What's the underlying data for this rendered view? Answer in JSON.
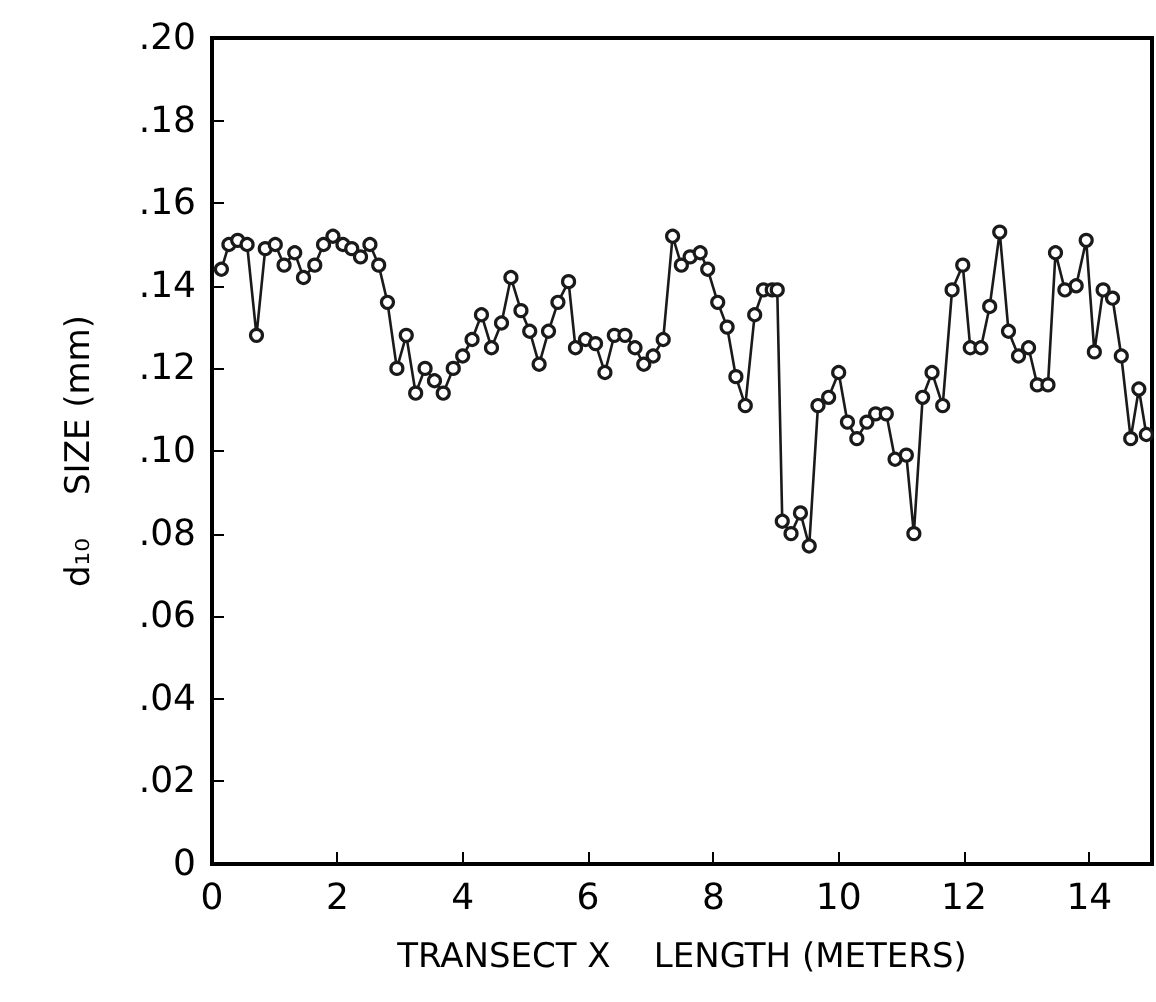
{
  "chart_data": {
    "type": "line",
    "xlabel": "TRANSECT X    LENGTH (METERS)",
    "ylabel": "d₁₀    SIZE (mm)",
    "xlim": [
      0,
      15
    ],
    "xticks": [
      0,
      2,
      4,
      6,
      8,
      10,
      12,
      14
    ],
    "ylim": [
      0,
      0.2
    ],
    "yticks": [
      {
        "value": 0,
        "label": "0"
      },
      {
        "value": 0.02,
        "label": ".02"
      },
      {
        "value": 0.04,
        "label": ".04"
      },
      {
        "value": 0.06,
        "label": ".06"
      },
      {
        "value": 0.08,
        "label": ".08"
      },
      {
        "value": 0.1,
        "label": ".10"
      },
      {
        "value": 0.12,
        "label": ".12"
      },
      {
        "value": 0.14,
        "label": ".14"
      },
      {
        "value": 0.16,
        "label": ".16"
      },
      {
        "value": 0.18,
        "label": ".18"
      },
      {
        "value": 0.2,
        "label": ".20"
      }
    ],
    "grid": false,
    "marker": "circle",
    "line_style": "solid",
    "series": [
      {
        "color": "#1a1a1a",
        "x": [
          0.15,
          0.27,
          0.41,
          0.56,
          0.71,
          0.85,
          1.01,
          1.15,
          1.32,
          1.46,
          1.64,
          1.78,
          1.93,
          2.09,
          2.23,
          2.37,
          2.52,
          2.66,
          2.8,
          2.95,
          3.1,
          3.25,
          3.4,
          3.55,
          3.69,
          3.85,
          4.0,
          4.15,
          4.3,
          4.46,
          4.62,
          4.77,
          4.93,
          5.07,
          5.22,
          5.37,
          5.52,
          5.69,
          5.8,
          5.96,
          6.12,
          6.27,
          6.42,
          6.59,
          6.75,
          6.89,
          7.04,
          7.2,
          7.35,
          7.49,
          7.63,
          7.79,
          7.91,
          8.07,
          8.22,
          8.36,
          8.51,
          8.66,
          8.8,
          8.94,
          9.02,
          9.1,
          9.24,
          9.39,
          9.53,
          9.67,
          9.84,
          10.0,
          10.14,
          10.29,
          10.45,
          10.59,
          10.76,
          10.9,
          11.08,
          11.2,
          11.34,
          11.49,
          11.66,
          11.81,
          11.98,
          12.1,
          12.27,
          12.41,
          12.57,
          12.71,
          12.87,
          13.03,
          13.17,
          13.34,
          13.46,
          13.61,
          13.79,
          13.95,
          14.08,
          14.22,
          14.37,
          14.51,
          14.66,
          14.79,
          14.91
        ],
        "values": [
          0.144,
          0.15,
          0.151,
          0.15,
          0.128,
          0.149,
          0.15,
          0.145,
          0.148,
          0.142,
          0.145,
          0.15,
          0.152,
          0.15,
          0.149,
          0.147,
          0.15,
          0.145,
          0.136,
          0.12,
          0.128,
          0.114,
          0.12,
          0.117,
          0.114,
          0.12,
          0.123,
          0.127,
          0.133,
          0.125,
          0.131,
          0.142,
          0.134,
          0.129,
          0.121,
          0.129,
          0.136,
          0.141,
          0.125,
          0.127,
          0.126,
          0.119,
          0.128,
          0.128,
          0.125,
          0.121,
          0.123,
          0.127,
          0.152,
          0.145,
          0.147,
          0.148,
          0.144,
          0.136,
          0.13,
          0.118,
          0.111,
          0.133,
          0.139,
          0.139,
          0.139,
          0.083,
          0.08,
          0.085,
          0.077,
          0.111,
          0.113,
          0.119,
          0.107,
          0.103,
          0.107,
          0.109,
          0.109,
          0.098,
          0.099,
          0.08,
          0.113,
          0.119,
          0.111,
          0.139,
          0.145,
          0.125,
          0.125,
          0.135,
          0.153,
          0.129,
          0.123,
          0.125,
          0.116,
          0.116,
          0.148,
          0.139,
          0.14,
          0.151,
          0.124,
          0.139,
          0.137,
          0.123,
          0.103,
          0.115,
          0.104
        ]
      }
    ]
  }
}
